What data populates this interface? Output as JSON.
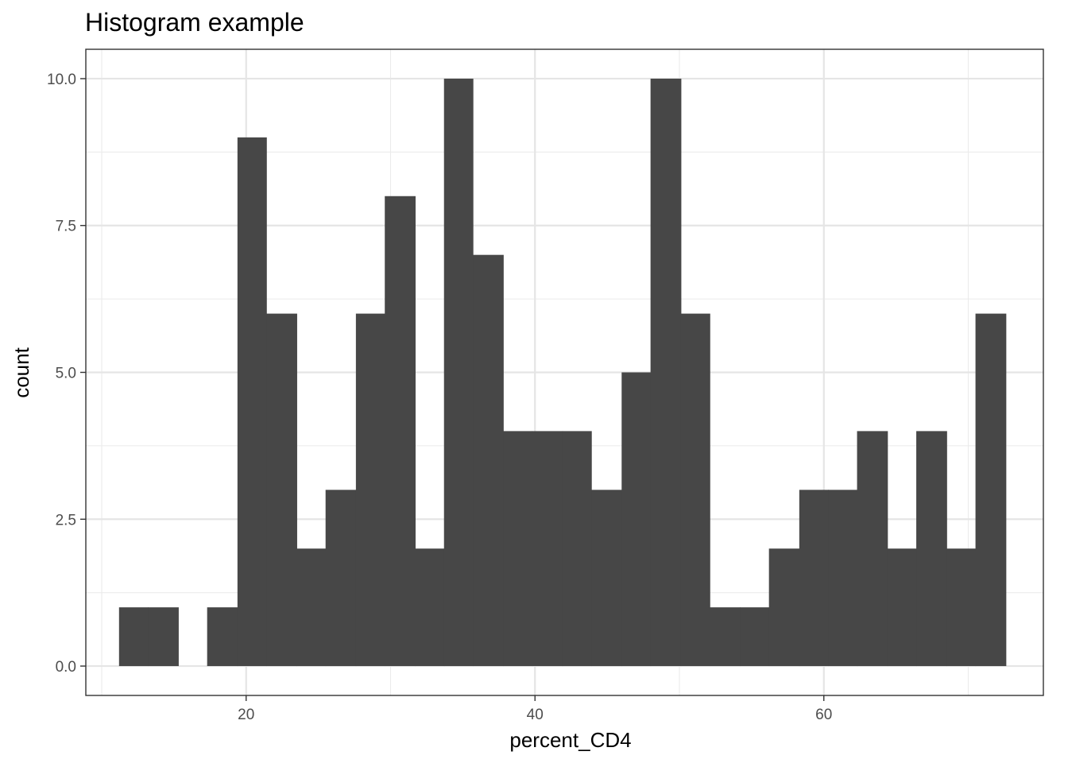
{
  "chart_data": {
    "type": "bar",
    "title": "Histogram example",
    "xlabel": "percent_CD4",
    "ylabel": "count",
    "xlim": [
      8.9,
      75.2
    ],
    "ylim": [
      -0.5,
      10.5
    ],
    "x_ticks": [
      20,
      40,
      60
    ],
    "x_tick_labels": [
      "20",
      "40",
      "60"
    ],
    "x_minor_ticks": [
      10,
      30,
      50,
      70
    ],
    "y_ticks": [
      0,
      2.5,
      5,
      7.5,
      10
    ],
    "y_tick_labels": [
      "0.0",
      "2.5",
      "5.0",
      "7.5",
      "10.0"
    ],
    "y_minor_ticks": [
      1.25,
      3.75,
      6.25,
      8.75
    ],
    "grid": true,
    "bar_color": "#474747",
    "bins": [
      {
        "x0": 11.2,
        "x1": 13.2,
        "count": 1
      },
      {
        "x0": 13.2,
        "x1": 15.3,
        "count": 1
      },
      {
        "x0": 15.3,
        "x1": 17.3,
        "count": 0
      },
      {
        "x0": 17.3,
        "x1": 19.4,
        "count": 1
      },
      {
        "x0": 19.4,
        "x1": 21.4,
        "count": 9
      },
      {
        "x0": 21.4,
        "x1": 23.5,
        "count": 6
      },
      {
        "x0": 23.5,
        "x1": 25.5,
        "count": 2
      },
      {
        "x0": 25.5,
        "x1": 27.6,
        "count": 3
      },
      {
        "x0": 27.6,
        "x1": 29.6,
        "count": 6
      },
      {
        "x0": 29.6,
        "x1": 31.7,
        "count": 8
      },
      {
        "x0": 31.7,
        "x1": 33.7,
        "count": 2
      },
      {
        "x0": 33.7,
        "x1": 35.7,
        "count": 10
      },
      {
        "x0": 35.7,
        "x1": 37.8,
        "count": 7
      },
      {
        "x0": 37.8,
        "x1": 39.8,
        "count": 4
      },
      {
        "x0": 39.8,
        "x1": 41.9,
        "count": 4
      },
      {
        "x0": 41.9,
        "x1": 43.9,
        "count": 4
      },
      {
        "x0": 43.9,
        "x1": 46.0,
        "count": 3
      },
      {
        "x0": 46.0,
        "x1": 48.0,
        "count": 5
      },
      {
        "x0": 48.0,
        "x1": 50.1,
        "count": 10
      },
      {
        "x0": 50.1,
        "x1": 52.1,
        "count": 6
      },
      {
        "x0": 52.1,
        "x1": 54.2,
        "count": 1
      },
      {
        "x0": 54.2,
        "x1": 56.2,
        "count": 1
      },
      {
        "x0": 56.2,
        "x1": 58.3,
        "count": 2
      },
      {
        "x0": 58.3,
        "x1": 60.3,
        "count": 3
      },
      {
        "x0": 60.3,
        "x1": 62.3,
        "count": 3
      },
      {
        "x0": 62.3,
        "x1": 64.4,
        "count": 4
      },
      {
        "x0": 64.4,
        "x1": 66.4,
        "count": 2
      },
      {
        "x0": 66.4,
        "x1": 68.5,
        "count": 4
      },
      {
        "x0": 68.5,
        "x1": 70.5,
        "count": 2
      },
      {
        "x0": 70.5,
        "x1": 72.6,
        "count": 6
      }
    ]
  }
}
